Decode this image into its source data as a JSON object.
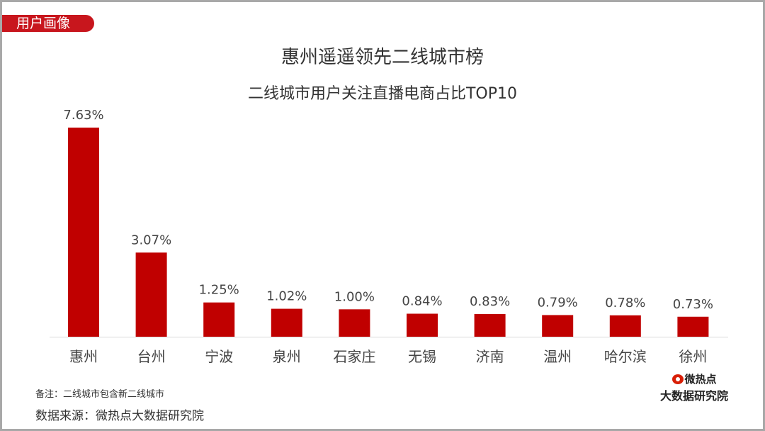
{
  "tag": "用户画像",
  "title": "惠州遥遥领先二线城市榜",
  "subtitle": "二线城市用户关注直播电商占比TOP10",
  "note": "备注：二线城市包含新二线城市",
  "source": "数据来源：微热点大数据研究院",
  "logo": {
    "line1": "微热点",
    "line2": "大数据研究院"
  },
  "colors": {
    "bar": "#c00000",
    "tag": "#c8161d"
  },
  "chart_data": {
    "type": "bar",
    "title": "二线城市用户关注直播电商占比TOP10",
    "categories": [
      "惠州",
      "台州",
      "宁波",
      "泉州",
      "石家庄",
      "无锡",
      "济南",
      "温州",
      "哈尔滨",
      "徐州"
    ],
    "values": [
      7.63,
      3.07,
      1.25,
      1.02,
      1.0,
      0.84,
      0.83,
      0.79,
      0.78,
      0.73
    ],
    "labels": [
      "7.63%",
      "3.07%",
      "1.25%",
      "1.02%",
      "1.00%",
      "0.84%",
      "0.83%",
      "0.79%",
      "0.78%",
      "0.73%"
    ],
    "unit": "%",
    "ylim": [
      0,
      7.63
    ],
    "grid": false
  }
}
